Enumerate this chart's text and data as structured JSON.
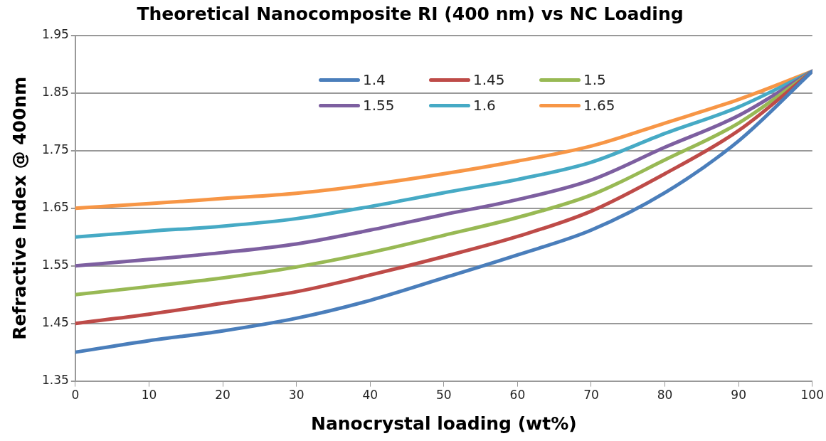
{
  "chart_data": {
    "type": "line",
    "title": "Theoretical Nanocomposite RI (400 nm) vs NC Loading",
    "xlabel": "Nanocrystal loading (wt%)",
    "ylabel": "Refractive Index @ 400nm",
    "x": [
      0,
      10,
      20,
      30,
      40,
      50,
      60,
      70,
      80,
      90,
      100
    ],
    "series": [
      {
        "name": "1.4",
        "color": "#4a7ebb",
        "values": [
          1.4,
          1.42,
          1.437,
          1.459,
          1.49,
          1.529,
          1.569,
          1.612,
          1.677,
          1.767,
          1.888
        ]
      },
      {
        "name": "1.45",
        "color": "#be4b48",
        "values": [
          1.45,
          1.466,
          1.485,
          1.505,
          1.534,
          1.566,
          1.601,
          1.645,
          1.71,
          1.785,
          1.888
        ]
      },
      {
        "name": "1.5",
        "color": "#98b954",
        "values": [
          1.5,
          1.514,
          1.529,
          1.548,
          1.573,
          1.603,
          1.634,
          1.673,
          1.734,
          1.798,
          1.888
        ]
      },
      {
        "name": "1.55",
        "color": "#7d5fa0",
        "values": [
          1.55,
          1.561,
          1.573,
          1.588,
          1.612,
          1.639,
          1.665,
          1.699,
          1.756,
          1.811,
          1.888
        ]
      },
      {
        "name": "1.6",
        "color": "#46aac5",
        "values": [
          1.6,
          1.61,
          1.619,
          1.632,
          1.653,
          1.677,
          1.7,
          1.73,
          1.78,
          1.826,
          1.888
        ]
      },
      {
        "name": "1.65",
        "color": "#f79646",
        "values": [
          1.65,
          1.658,
          1.667,
          1.676,
          1.691,
          1.71,
          1.732,
          1.758,
          1.798,
          1.839,
          1.888
        ]
      }
    ],
    "xlim": [
      0,
      100
    ],
    "xticks": [
      0,
      10,
      20,
      30,
      40,
      50,
      60,
      70,
      80,
      90,
      100
    ],
    "ylim": [
      1.35,
      1.95
    ],
    "yticks": [
      1.35,
      1.45,
      1.55,
      1.65,
      1.75,
      1.85,
      1.95
    ],
    "grid": "y",
    "legend": "top",
    "marker": "none",
    "line_style": "solid"
  }
}
